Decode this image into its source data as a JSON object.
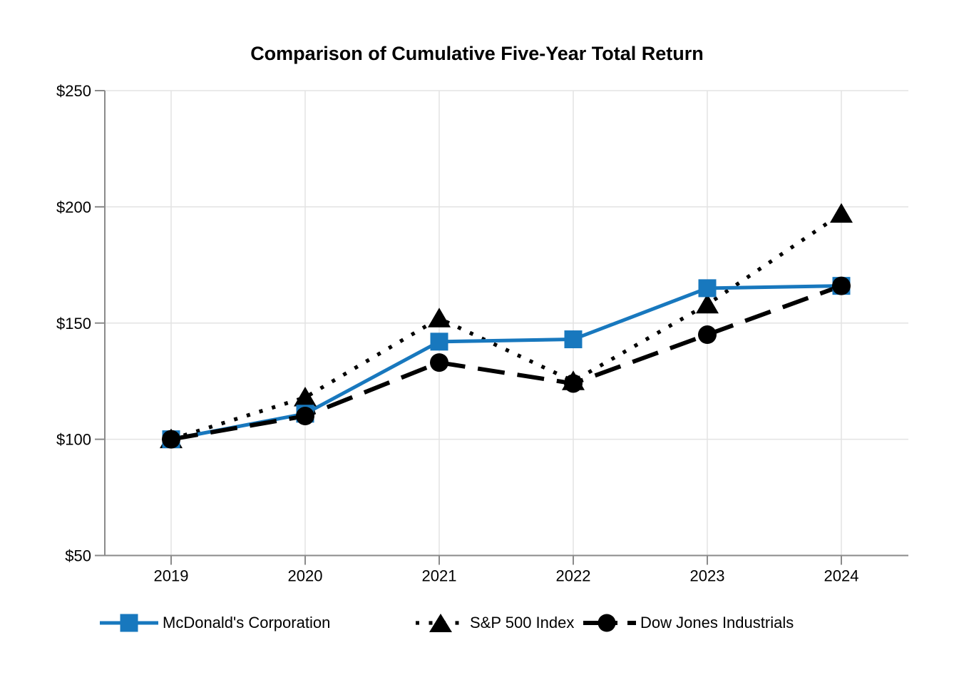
{
  "chart_data": {
    "type": "line",
    "title": "Comparison of Cumulative Five-Year Total Return",
    "x_tick_labels": [
      "2019",
      "2020",
      "2021",
      "2022",
      "2023",
      "2024"
    ],
    "y_ticks": [
      50,
      100,
      150,
      200,
      250
    ],
    "y_tick_labels": [
      "$50",
      "$100",
      "$150",
      "$200",
      "$250"
    ],
    "ylim": [
      50,
      250
    ],
    "grid": true,
    "legend_position": "bottom",
    "series": [
      {
        "name": "McDonald's Corporation",
        "marker": "square",
        "line_style": "solid",
        "color": "#1878be",
        "values": [
          100,
          111,
          142,
          143,
          165,
          166
        ]
      },
      {
        "name": "S&P 500 Index",
        "marker": "triangle",
        "line_style": "dotted",
        "color": "#000000",
        "values": [
          100,
          118,
          152,
          125,
          158,
          197
        ]
      },
      {
        "name": "Dow Jones Industrials",
        "marker": "circle",
        "line_style": "dashed",
        "color": "#000000",
        "values": [
          100,
          110,
          133,
          124,
          145,
          166
        ]
      }
    ]
  },
  "legend": {
    "items": [
      {
        "label": "McDonald's Corporation"
      },
      {
        "label": "S&P 500 Index"
      },
      {
        "label": "Dow Jones Industrials"
      }
    ]
  },
  "colors": {
    "mcd_blue": "#1878be",
    "series_black": "#000000",
    "gridline": "#e3e3e3",
    "axis": "#8a8a8a",
    "text": "#000000",
    "background": "#ffffff"
  }
}
